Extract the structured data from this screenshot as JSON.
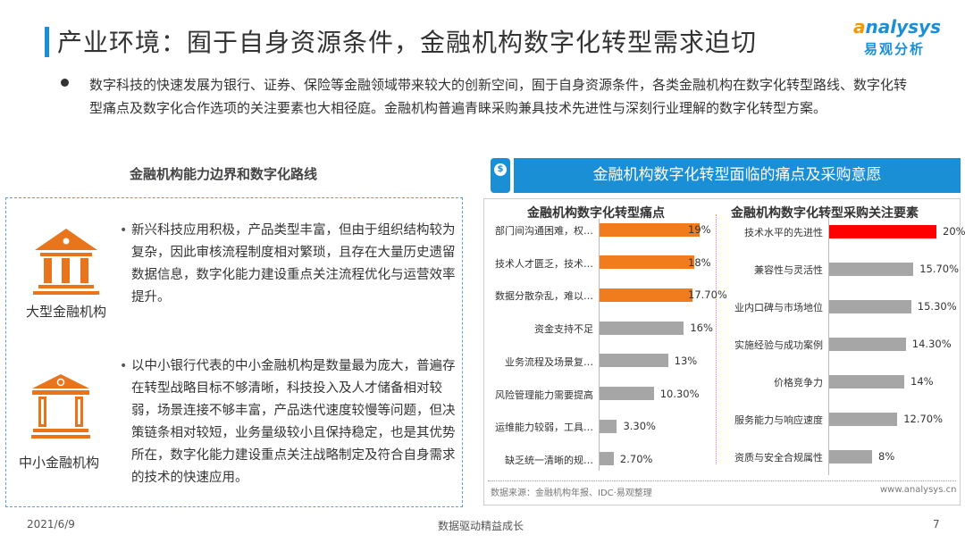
{
  "header": {
    "title": "产业环境：囿于自身资源条件，金融机构数字化转型需求迫切",
    "logo_en": "nalysys",
    "logo_en_initial": "a",
    "logo_cn": "易观分析"
  },
  "intro": "数字科技的快速发展为银行、证券、保险等金融领域带来较大的创新空间，囿于自身资源条件，各类金融机构在数字化转型路线、数字化转型痛点及数字化合作选项的关注要素也大相径庭。金融机构普遍青睐采购兼具技术先进性与深刻行业理解的数字化转型方案。",
  "left": {
    "title": "金融机构能力边界和数字化路线",
    "items": [
      {
        "label": "大型金融机构",
        "text": "新兴科技应用积极，产品类型丰富，但由于组织结构较为复杂，因此审核流程制度相对繁琐，且存在大量历史遗留数据信息，数字化能力建设重点关注流程优化与运营效率提升。"
      },
      {
        "label": "中小金融机构",
        "text": "以中小银行代表的中小金融机构是数量最为庞大，普遍存在转型战略目标不够清晰，科技投入及人才储备相对较弱，场景连接不够丰富，产品迭代速度较慢等问题，但决策链条相对较短，业务量级较小且保持稳定，也是其优势所在，数字化能力建设重点关注战略制定及符合自身需求的技术的快速应用。"
      }
    ]
  },
  "panel": {
    "title": "金融机构数字化转型面临的痛点及采购意愿",
    "source": "数据来源：金融机构年报、IDC·易观整理",
    "site": "www.analysys.cn"
  },
  "chart_data": [
    {
      "type": "bar",
      "orientation": "horizontal",
      "title": "金融机构数字化转型痛点",
      "categories": [
        "部门间沟通困难，权…",
        "技术人才匮乏，技术…",
        "数据分散杂乱，难以…",
        "资金支持不足",
        "业务流程及场景复…",
        "风险管理能力需要提高",
        "运维能力较弱，工具…",
        "缺乏统一清晰的规…"
      ],
      "values": [
        19,
        18,
        17.7,
        16,
        13,
        10.3,
        3.3,
        2.7
      ],
      "labels": [
        "19%",
        "18%",
        "17.70%",
        "16%",
        "13%",
        "10.30%",
        "3.30%",
        "2.70%"
      ],
      "colors": [
        "#f07c1e",
        "#f07c1e",
        "#f07c1e",
        "#a6a6a6",
        "#a6a6a6",
        "#a6a6a6",
        "#a6a6a6",
        "#a6a6a6"
      ],
      "xlim": [
        0,
        19
      ]
    },
    {
      "type": "bar",
      "orientation": "horizontal",
      "title": "金融机构数字化转型采购关注要素",
      "categories": [
        "技术水平的先进性",
        "兼容性与灵活性",
        "业内口碑与市场地位",
        "实施经验与成功案例",
        "价格竞争力",
        "服务能力与响应速度",
        "资质与安全合规属性"
      ],
      "values": [
        20,
        15.7,
        15.3,
        14.3,
        14,
        12.7,
        8
      ],
      "labels": [
        "20%",
        "15.70%",
        "15.30%",
        "14.30%",
        "14%",
        "12.70%",
        "8%"
      ],
      "colors": [
        "#ff0000",
        "#a6a6a6",
        "#a6a6a6",
        "#a6a6a6",
        "#a6a6a6",
        "#a6a6a6",
        "#a6a6a6"
      ],
      "xlim": [
        0,
        20
      ]
    }
  ],
  "footer": {
    "date": "2021/6/9",
    "center": "数据驱动精益成长",
    "page": "7"
  }
}
